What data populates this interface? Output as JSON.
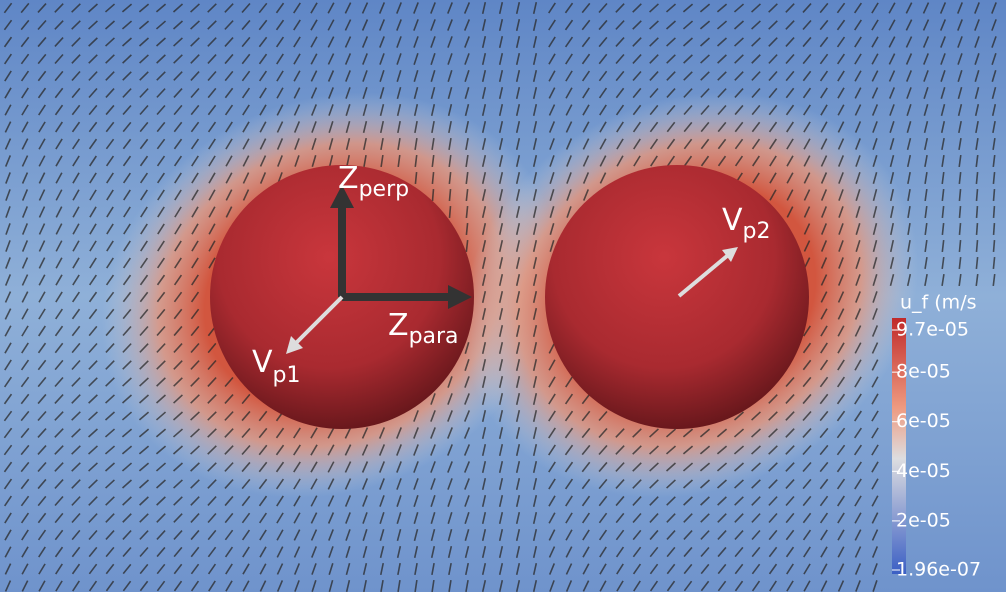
{
  "annotations": [
    {
      "symbol": "Z",
      "subscript": "perp"
    },
    {
      "symbol": "Z",
      "subscript": "para"
    },
    {
      "symbol": "V",
      "subscript": "p1"
    },
    {
      "symbol": "V",
      "subscript": "p2"
    }
  ],
  "colorbar": {
    "title": "u_f (m/s",
    "range": [
      1.96e-07,
      9.7e-05
    ],
    "ticks": [
      {
        "value": 9.7e-05,
        "label": "9.7e-05"
      },
      {
        "value": 8e-05,
        "label": "8e-05"
      },
      {
        "value": 6e-05,
        "label": "6e-05"
      },
      {
        "value": 4e-05,
        "label": "4e-05"
      },
      {
        "value": 2e-05,
        "label": "2e-05"
      },
      {
        "value": 1.96e-07,
        "label": "1.96e-07"
      }
    ]
  }
}
